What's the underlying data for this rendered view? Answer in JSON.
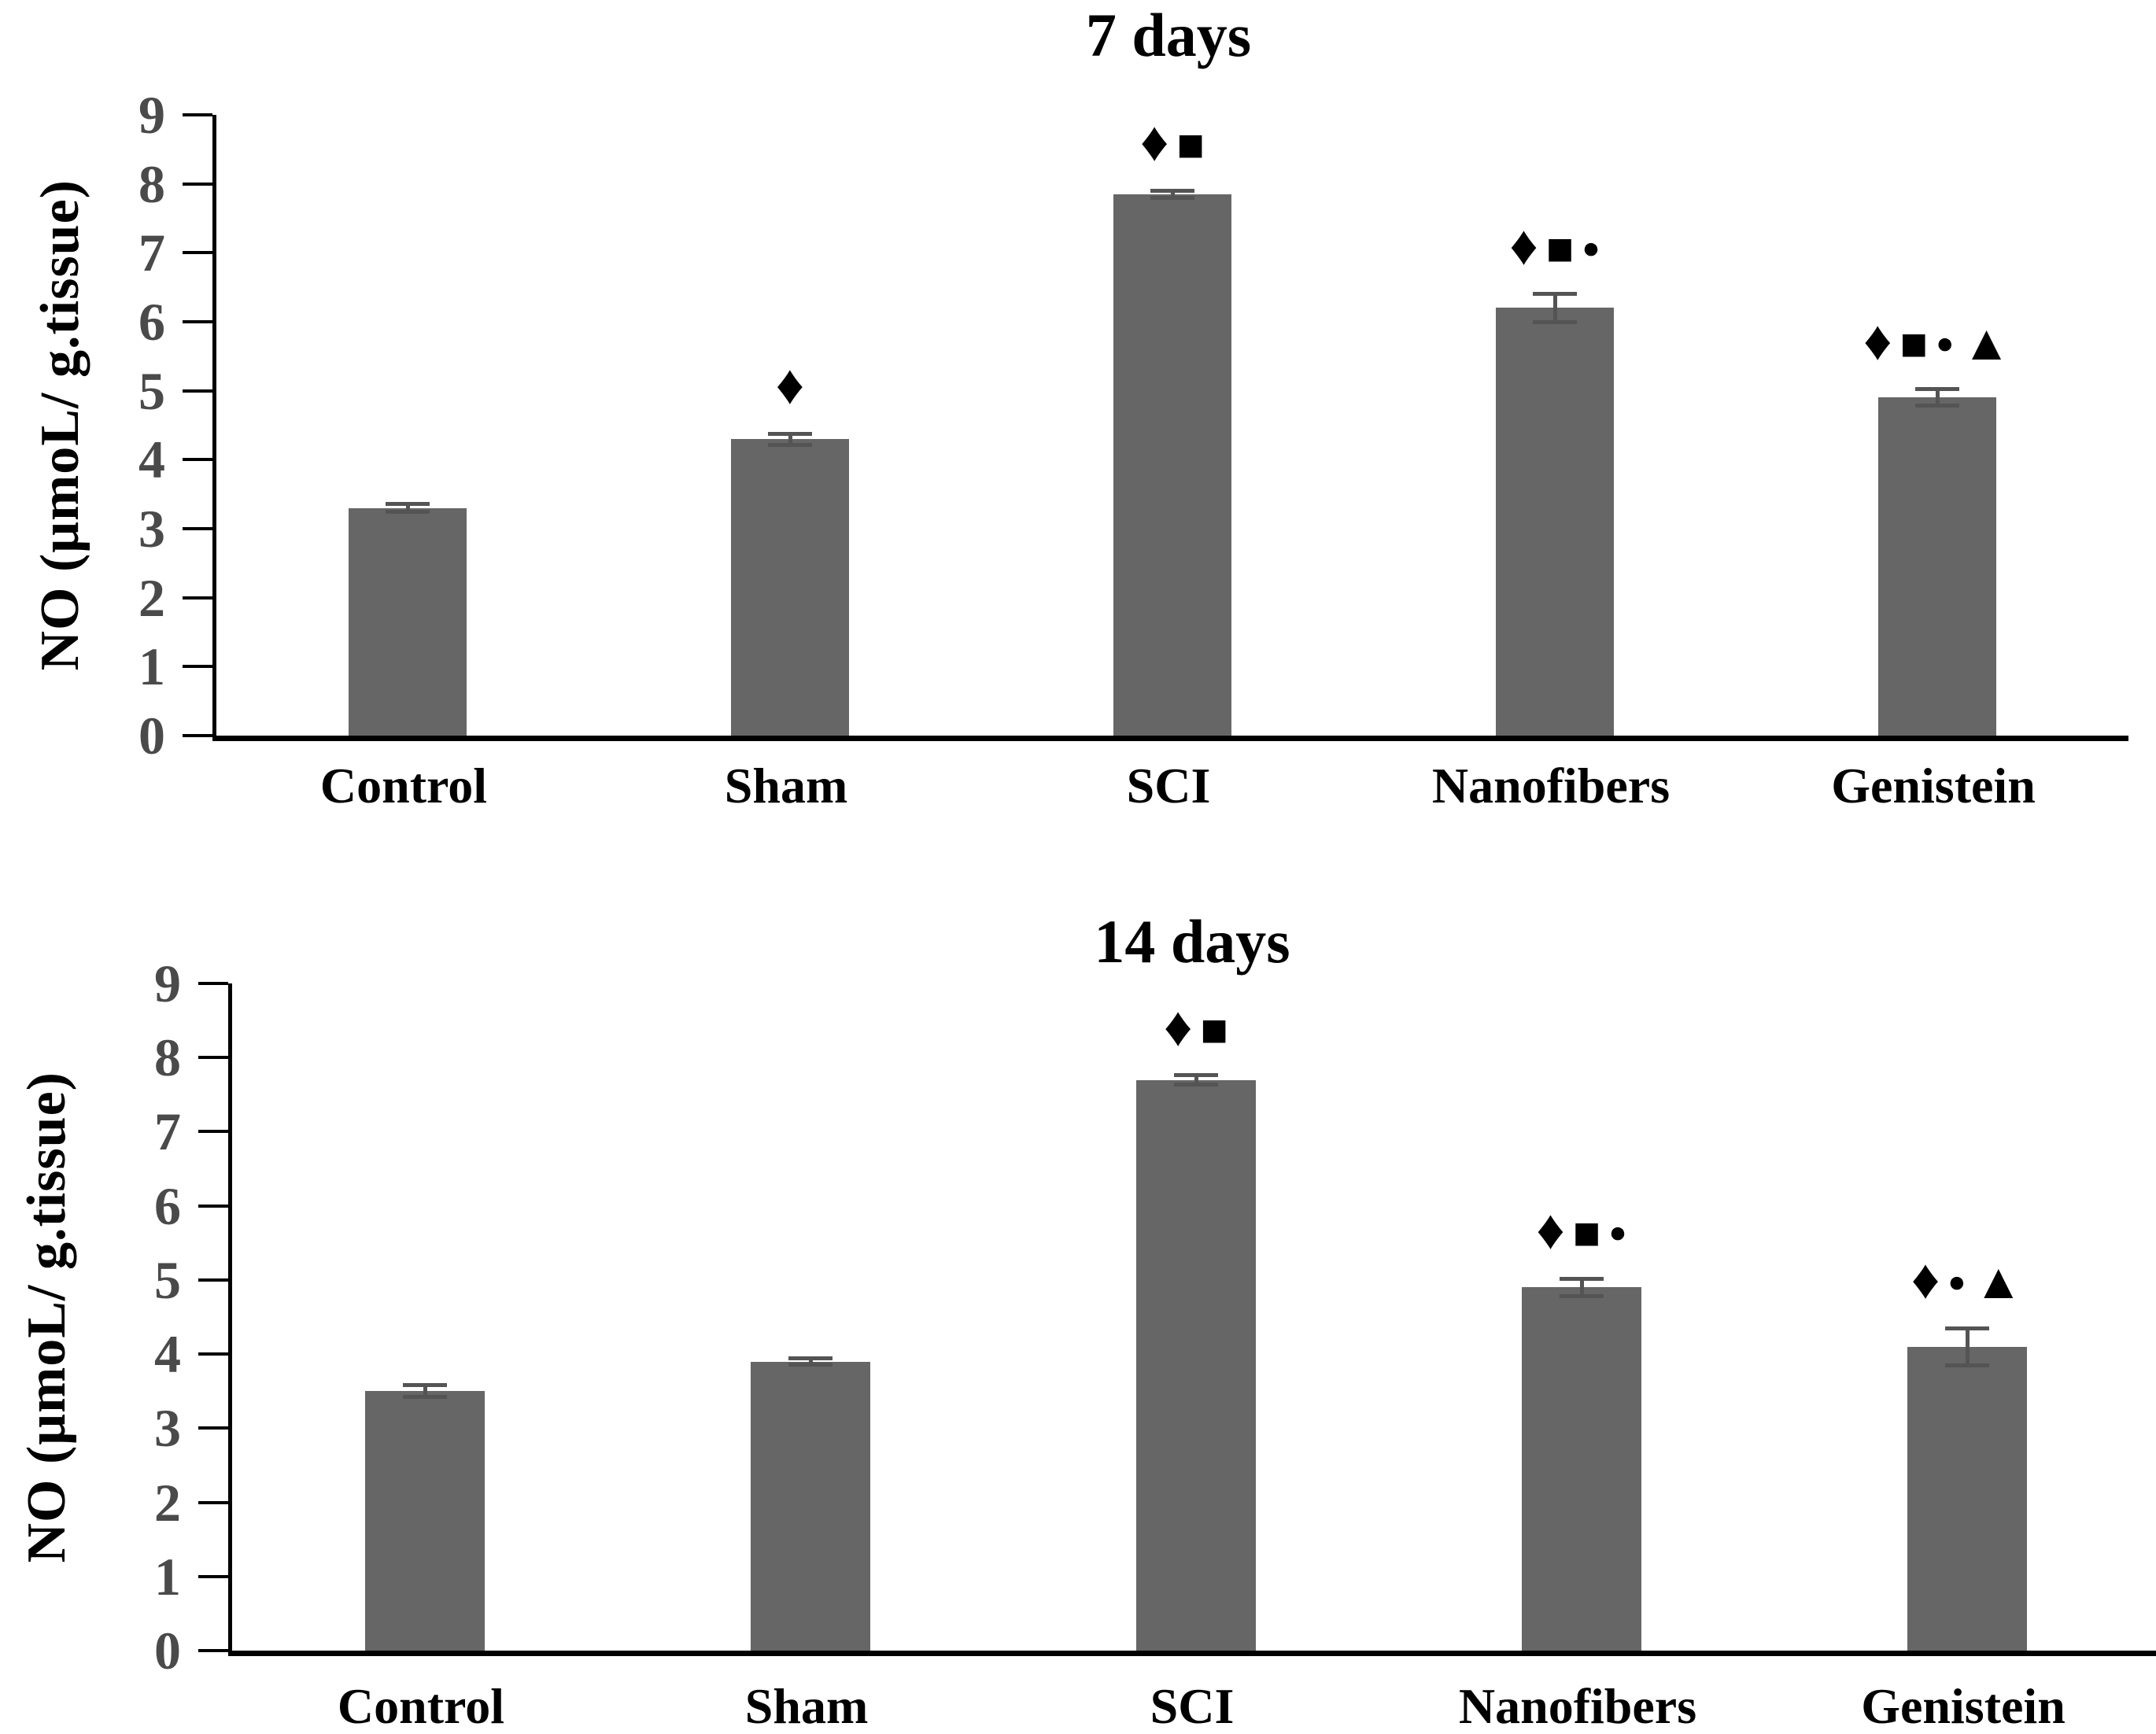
{
  "figure": {
    "background": "#ffffff",
    "bar_color": "#666666",
    "error_bar_color": "#545454",
    "axis_color": "#000000",
    "tick_label_color": "#4a4a4a",
    "text_color": "#000000"
  },
  "chart_data": [
    {
      "type": "bar",
      "title": "7 days",
      "xlabel": "",
      "ylabel": "NO (μmoL/ g.tissue)",
      "categories": [
        "Control",
        "Sham",
        "SCI",
        "Nanofibers",
        "Genistein"
      ],
      "values": [
        3.3,
        4.3,
        7.85,
        6.2,
        4.9
      ],
      "errors": [
        0.06,
        0.08,
        0.05,
        0.2,
        0.12
      ],
      "annotations": [
        "",
        "♦",
        "♦■",
        "♦■●",
        "♦■●▲"
      ],
      "ylim": [
        0,
        9
      ],
      "tick_step": 1,
      "grid": false,
      "legend": "none"
    },
    {
      "type": "bar",
      "title": "14 days",
      "xlabel": "",
      "ylabel": "NO (μmoL/ g.tissue)",
      "categories": [
        "Control",
        "Sham",
        "SCI",
        "Nanofibers",
        "Genistein"
      ],
      "values": [
        3.5,
        3.9,
        7.7,
        4.9,
        4.1
      ],
      "errors": [
        0.08,
        0.04,
        0.06,
        0.12,
        0.25
      ],
      "annotations": [
        "",
        "",
        "♦■",
        "♦■●",
        "♦●▲"
      ],
      "ylim": [
        0,
        9
      ],
      "tick_step": 1,
      "grid": false,
      "legend": "none"
    }
  ]
}
